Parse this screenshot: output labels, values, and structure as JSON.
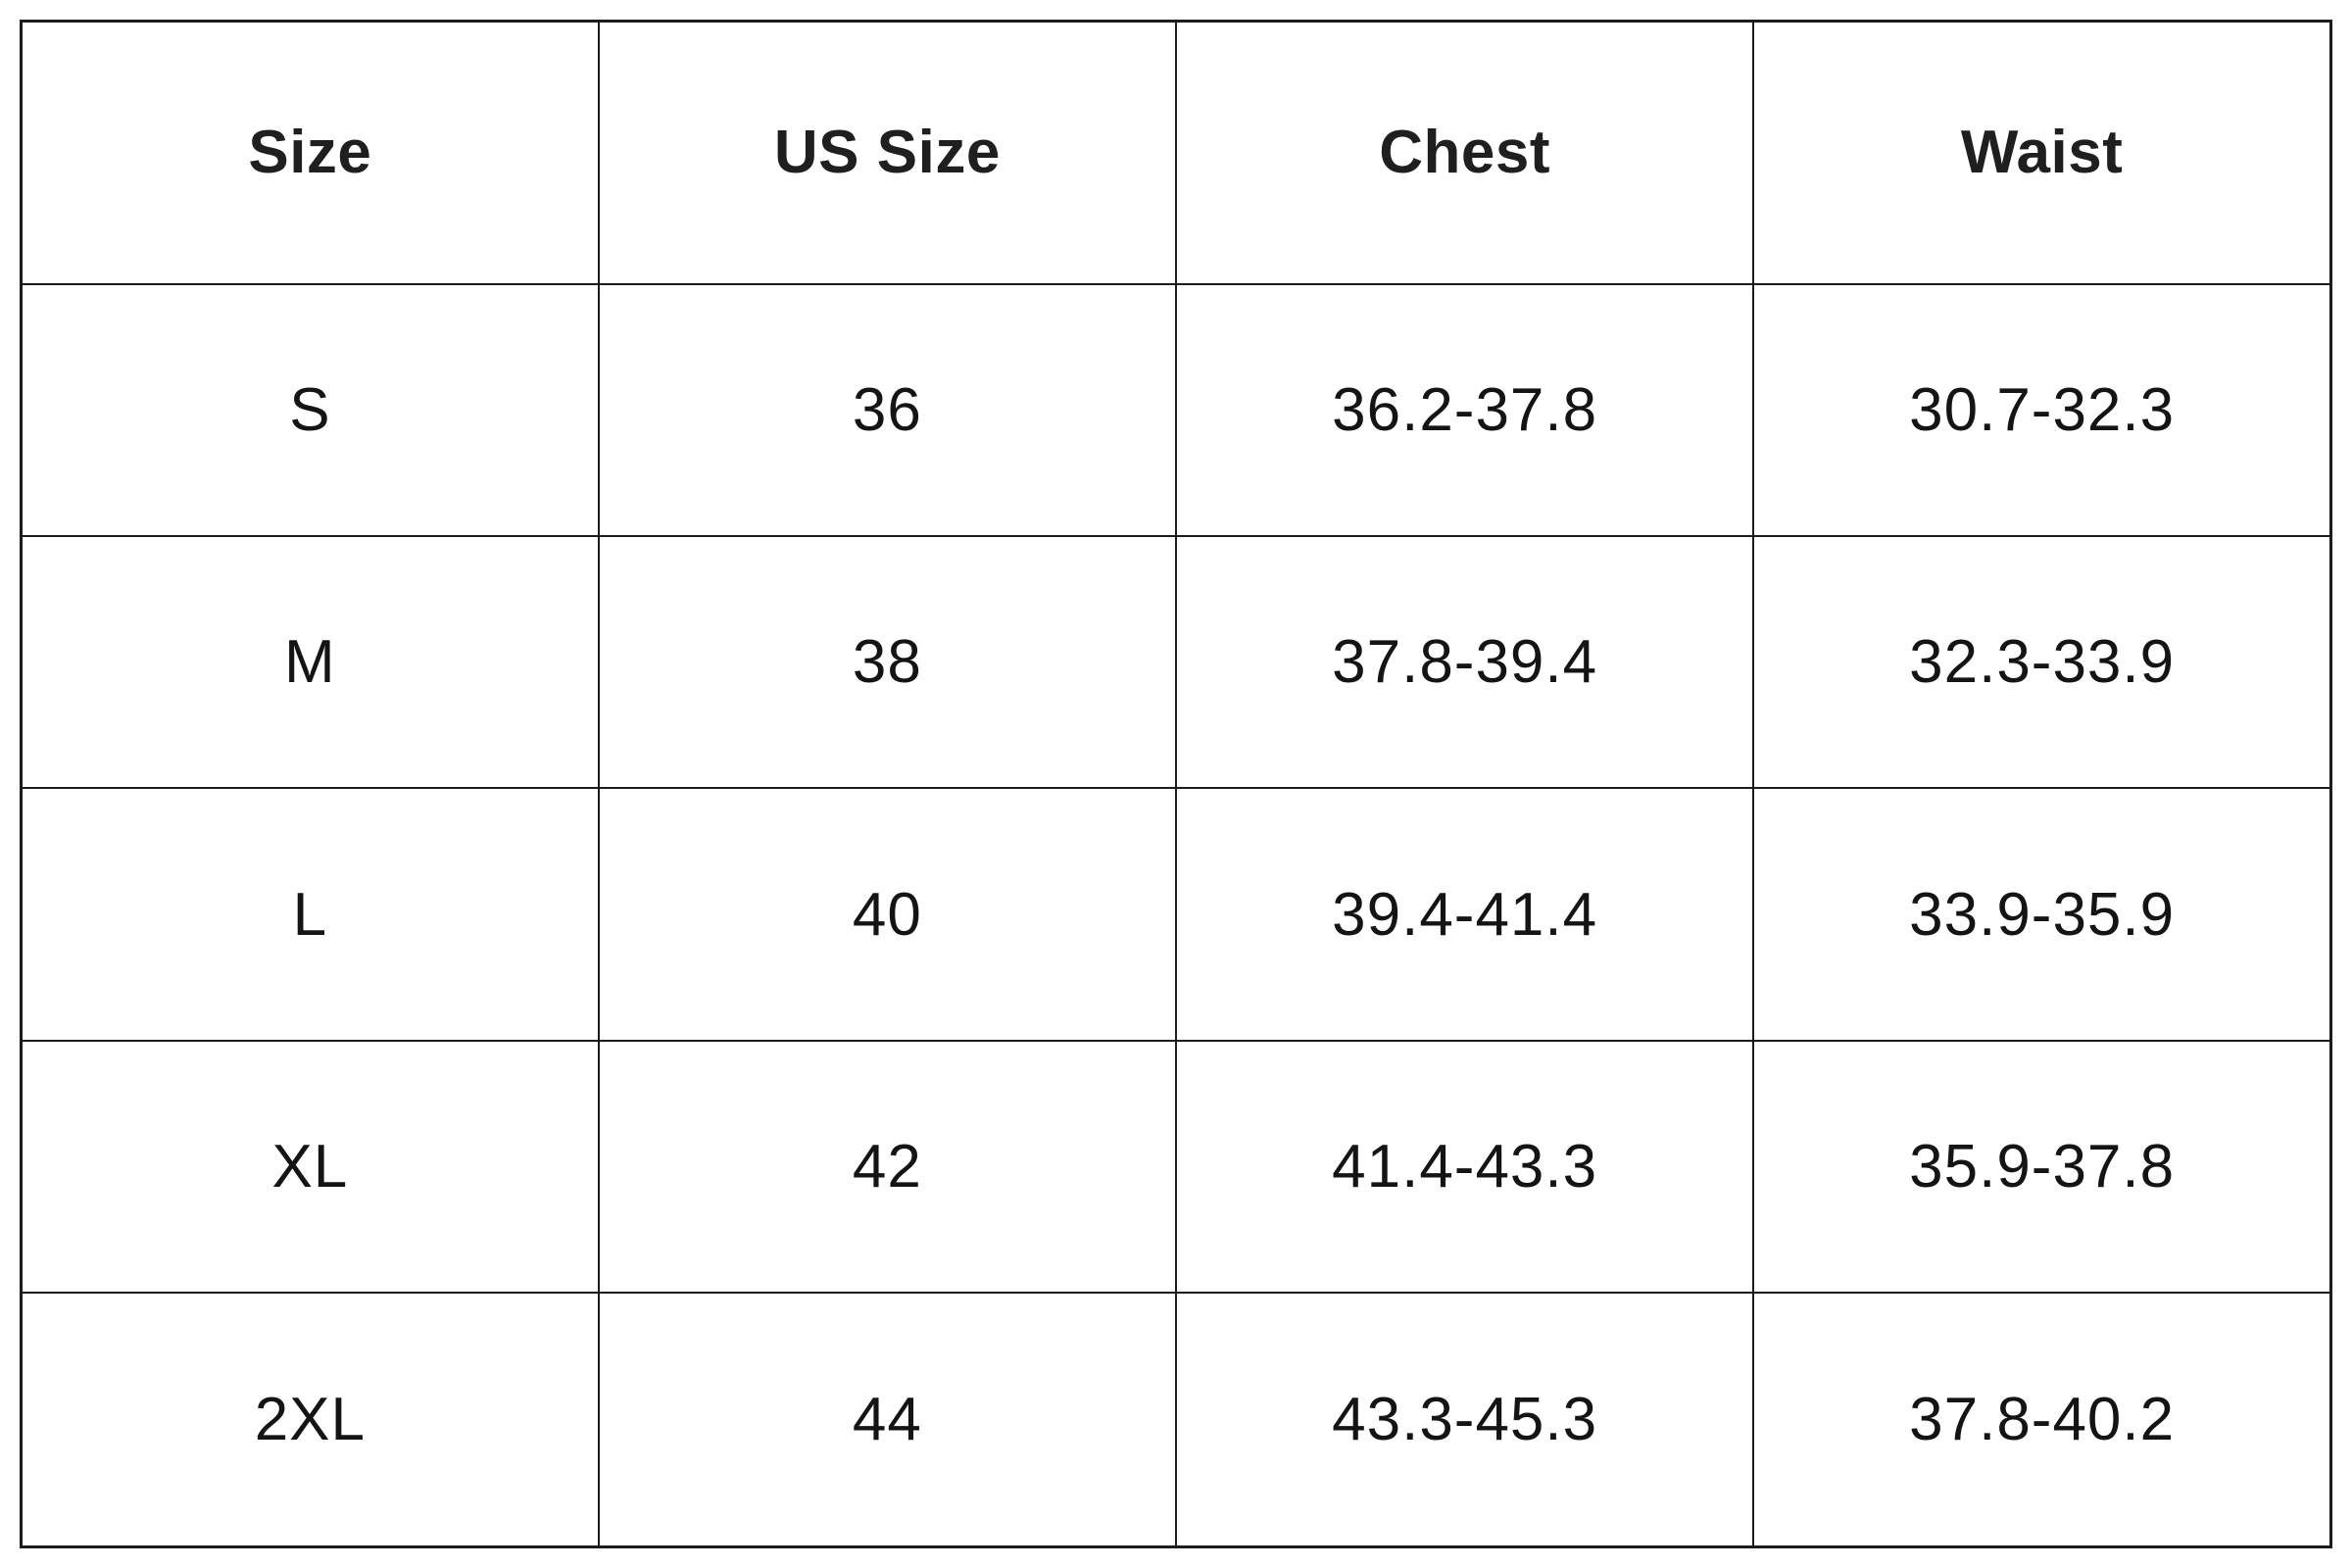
{
  "table": {
    "columns": [
      "Size",
      "US Size",
      "Chest",
      "Waist"
    ],
    "rows": [
      [
        "S",
        "36",
        "36.2-37.8",
        "30.7-32.3"
      ],
      [
        "M",
        "38",
        "37.8-39.4",
        "32.3-33.9"
      ],
      [
        "L",
        "40",
        "39.4-41.4",
        "33.9-35.9"
      ],
      [
        "XL",
        "42",
        "41.4-43.3",
        "35.9-37.8"
      ],
      [
        "2XL",
        "44",
        "43.3-45.3",
        "37.8-40.2"
      ]
    ]
  },
  "colors": {
    "border": "#1c1c1c",
    "header_text": "#1f1f1f",
    "body_text": "#141414",
    "background": "#ffffff"
  }
}
